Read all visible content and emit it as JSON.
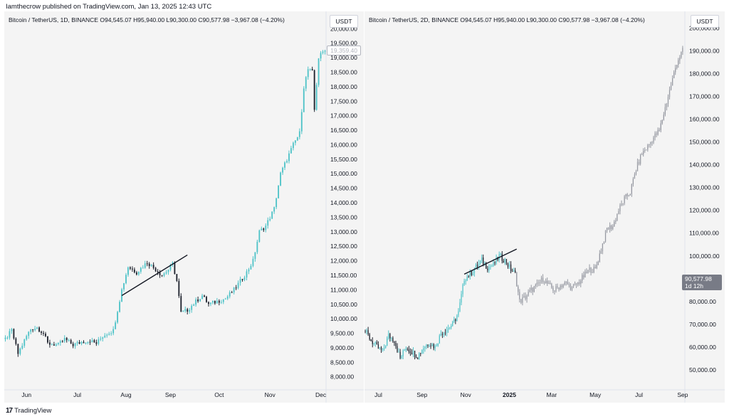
{
  "publisher_line": "Iamthecrow published on TradingView.com, Jan 13, 2025 12:43 UTC",
  "footer": {
    "logo_text": "TradingView",
    "logo_mark": "17"
  },
  "colors": {
    "up": "#4fc3c8",
    "down": "#1e222d",
    "projection": "#9598a1",
    "trendline": "#131722",
    "panel_bg": "#f4f4f4"
  },
  "chart_data": [
    {
      "type": "candlestick",
      "legend": {
        "symbol": "Bitcoin / TetherUS, 1D, BINANCE",
        "ohlc": "O94,545.07 H95,940.00 L90,300.00 C90,577.98 −3,967.08 (−4.20%)"
      },
      "currency": "USDT",
      "current_price_label": "19,359.40",
      "y_ticks": [
        "20,000.00",
        "19,500.00",
        "19,000.00",
        "18,500.00",
        "18,000.00",
        "17,500.00",
        "17,000.00",
        "16,500.00",
        "16,000.00",
        "15,500.00",
        "15,000.00",
        "14,500.00",
        "14,000.00",
        "13,500.00",
        "13,000.00",
        "12,500.00",
        "12,000.00",
        "11,500.00",
        "11,000.00",
        "10,500.00",
        "10,000.00",
        "9,500.00",
        "9,000.00",
        "8,500.00",
        "8,000.00"
      ],
      "y_tick_values": [
        20000,
        19500,
        19000,
        18500,
        18000,
        17500,
        17000,
        16500,
        16000,
        15500,
        15000,
        14500,
        14000,
        13500,
        13000,
        12500,
        12000,
        11500,
        11000,
        10500,
        10000,
        9500,
        9000,
        8500,
        8000
      ],
      "ylim": [
        7650,
        20400
      ],
      "x_ticks": [
        "Jun",
        "Jul",
        "Aug",
        "Sep",
        "Oct",
        "Nov",
        "Dec"
      ],
      "x_tick_index": [
        10,
        34,
        57,
        78,
        101,
        125,
        149
      ],
      "n_bars": 152,
      "anchors": [
        [
          0,
          9300
        ],
        [
          3,
          9600
        ],
        [
          6,
          8800
        ],
        [
          10,
          9400
        ],
        [
          12,
          9650
        ],
        [
          15,
          9700
        ],
        [
          18,
          9500
        ],
        [
          20,
          9150
        ],
        [
          25,
          9100
        ],
        [
          28,
          9300
        ],
        [
          32,
          9100
        ],
        [
          36,
          9200
        ],
        [
          40,
          9250
        ],
        [
          43,
          9150
        ],
        [
          46,
          9400
        ],
        [
          48,
          9500
        ],
        [
          51,
          9600
        ],
        [
          53,
          10300
        ],
        [
          55,
          11000
        ],
        [
          58,
          11800
        ],
        [
          62,
          11600
        ],
        [
          67,
          11950
        ],
        [
          71,
          11700
        ],
        [
          74,
          11500
        ],
        [
          77,
          11700
        ],
        [
          79,
          11900
        ],
        [
          81,
          11300
        ],
        [
          83,
          10200
        ],
        [
          86,
          10300
        ],
        [
          90,
          10600
        ],
        [
          93,
          10800
        ],
        [
          96,
          10500
        ],
        [
          100,
          10600
        ],
        [
          104,
          10700
        ],
        [
          108,
          11000
        ],
        [
          111,
          11300
        ],
        [
          114,
          11600
        ],
        [
          117,
          12000
        ],
        [
          120,
          13000
        ],
        [
          123,
          13200
        ],
        [
          127,
          13800
        ],
        [
          130,
          15000
        ],
        [
          133,
          15500
        ],
        [
          136,
          16000
        ],
        [
          139,
          16400
        ],
        [
          141,
          18000
        ],
        [
          143,
          18600
        ],
        [
          145,
          18500
        ],
        [
          146,
          17200
        ],
        [
          148,
          19000
        ],
        [
          150,
          19200
        ],
        [
          151,
          19300
        ]
      ],
      "trendline": [
        [
          55,
          10800
        ],
        [
          86,
          12200
        ]
      ]
    },
    {
      "type": "candlestick",
      "legend": {
        "symbol": "Bitcoin / TetherUS, 2D, BINANCE",
        "ohlc": "O94,545.07 H95,940.00 L90,300.00 C90,577.98 −3,967.08 (−4.20%)"
      },
      "currency": "USDT",
      "current_price_label": "90,577.98",
      "countdown_label": "1d 12h",
      "y_ticks": [
        "200,000.00",
        "190,000.00",
        "180,000.00",
        "170,000.00",
        "160,000.00",
        "150,000.00",
        "140,000.00",
        "130,000.00",
        "120,000.00",
        "110,000.00",
        "100,000.00",
        "90,000.00",
        "80,000.00",
        "70,000.00",
        "60,000.00",
        "50,000.00"
      ],
      "y_tick_values": [
        200000,
        190000,
        180000,
        170000,
        160000,
        150000,
        140000,
        130000,
        120000,
        110000,
        100000,
        90000,
        80000,
        70000,
        60000,
        50000
      ],
      "ylim": [
        42500,
        204800
      ],
      "x_ticks": [
        "Jul",
        "Sep",
        "Nov",
        "2025",
        "Mar",
        "May",
        "Jul",
        "Sep"
      ],
      "x_tick_index": [
        9,
        39,
        69,
        99,
        128,
        158,
        188,
        218
      ],
      "n_bars": 220,
      "actual_bars": 104,
      "anchors": [
        [
          0,
          67000
        ],
        [
          4,
          63000
        ],
        [
          8,
          60000
        ],
        [
          12,
          58000
        ],
        [
          16,
          65000
        ],
        [
          20,
          63000
        ],
        [
          24,
          55000
        ],
        [
          28,
          60000
        ],
        [
          32,
          58000
        ],
        [
          36,
          56000
        ],
        [
          40,
          60000
        ],
        [
          44,
          62000
        ],
        [
          48,
          60000
        ],
        [
          52,
          66000
        ],
        [
          56,
          68000
        ],
        [
          60,
          70000
        ],
        [
          64,
          75000
        ],
        [
          68,
          90000
        ],
        [
          72,
          92000
        ],
        [
          76,
          95000
        ],
        [
          80,
          98000
        ],
        [
          84,
          95000
        ],
        [
          88,
          96000
        ],
        [
          92,
          100000
        ],
        [
          96,
          98000
        ],
        [
          100,
          94000
        ],
        [
          103,
          92000
        ],
        [
          106,
          80000
        ],
        [
          110,
          82000
        ],
        [
          114,
          85000
        ],
        [
          118,
          87000
        ],
        [
          122,
          90000
        ],
        [
          126,
          87000
        ],
        [
          130,
          85000
        ],
        [
          134,
          87000
        ],
        [
          138,
          88000
        ],
        [
          142,
          86000
        ],
        [
          146,
          88000
        ],
        [
          150,
          91000
        ],
        [
          154,
          94000
        ],
        [
          158,
          94000
        ],
        [
          162,
          103000
        ],
        [
          166,
          112000
        ],
        [
          170,
          113000
        ],
        [
          174,
          120000
        ],
        [
          178,
          125000
        ],
        [
          182,
          128000
        ],
        [
          186,
          138000
        ],
        [
          190,
          145000
        ],
        [
          194,
          148000
        ],
        [
          198,
          152000
        ],
        [
          202,
          155000
        ],
        [
          206,
          165000
        ],
        [
          210,
          175000
        ],
        [
          214,
          185000
        ],
        [
          218,
          190000
        ]
      ],
      "trendline": [
        [
          68,
          92000
        ],
        [
          104,
          103000
        ]
      ]
    }
  ]
}
